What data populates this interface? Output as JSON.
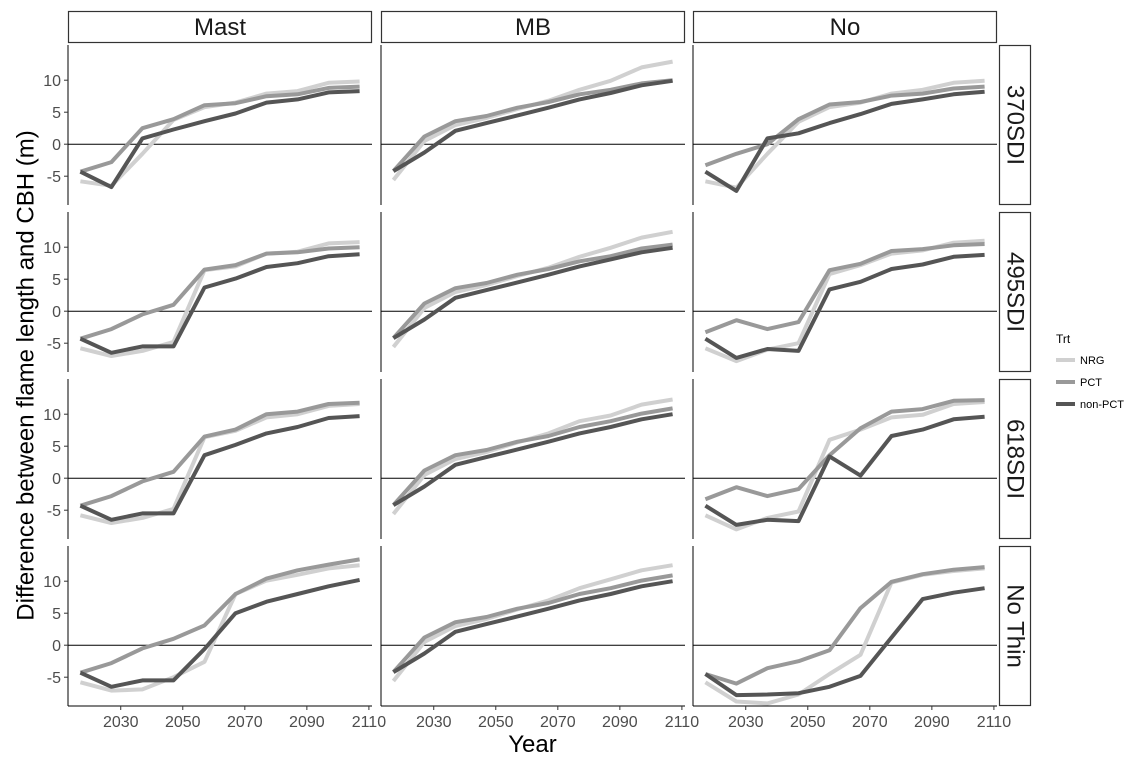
{
  "chart_data": {
    "type": "line",
    "xlabel": "Year",
    "ylabel": "Difference between flame length and CBH (m)",
    "xlim": [
      2013,
      2111
    ],
    "ylim": [
      -9.5,
      15.5
    ],
    "x_ticks": [
      2030,
      2050,
      2070,
      2090,
      2110
    ],
    "y_ticks": [
      -5,
      0,
      5,
      10
    ],
    "hline": 0,
    "x": [
      2017,
      2027,
      2037,
      2047,
      2057,
      2067,
      2077,
      2087,
      2097,
      2107
    ],
    "column_facets": [
      "Mast",
      "MB",
      "No"
    ],
    "row_facets": [
      "370SDI",
      "495SDI",
      "618SDI",
      "No Thin"
    ],
    "legend": {
      "title": "Trt",
      "placement": "right",
      "entries": [
        {
          "name": "NRG",
          "color": "#d0d0d0"
        },
        {
          "name": "PCT",
          "color": "#999999"
        },
        {
          "name": "non-PCT",
          "color": "#555555"
        }
      ]
    },
    "grid": false,
    "panels": [
      {
        "row": "370SDI",
        "col": "Mast",
        "series": [
          {
            "name": "NRG",
            "values": [
              -5.8,
              -6.5,
              -1.5,
              3.8,
              5.8,
              6.5,
              7.9,
              8.3,
              9.6,
              9.8
            ]
          },
          {
            "name": "PCT",
            "values": [
              -4.3,
              -2.8,
              2.5,
              3.9,
              6.1,
              6.4,
              7.5,
              7.8,
              8.8,
              9.0
            ]
          },
          {
            "name": "non-PCT",
            "values": [
              -4.3,
              -6.7,
              0.9,
              2.3,
              3.6,
              4.8,
              6.5,
              7.0,
              8.1,
              8.3
            ]
          }
        ]
      },
      {
        "row": "370SDI",
        "col": "MB",
        "series": [
          {
            "name": "NRG",
            "values": [
              -5.6,
              0.5,
              3.0,
              4.1,
              5.5,
              6.8,
              8.5,
              9.9,
              12.0,
              12.9
            ]
          },
          {
            "name": "PCT",
            "values": [
              -4.2,
              1.2,
              3.6,
              4.4,
              5.7,
              6.6,
              7.8,
              8.5,
              9.5,
              10.0
            ]
          },
          {
            "name": "non-PCT",
            "values": [
              -4.2,
              -1.3,
              2.1,
              3.3,
              4.5,
              5.7,
              7.0,
              8.0,
              9.2,
              9.9
            ]
          }
        ]
      },
      {
        "row": "370SDI",
        "col": "No",
        "series": [
          {
            "name": "NRG",
            "values": [
              -5.8,
              -6.8,
              -1.5,
              3.5,
              5.8,
              6.5,
              7.9,
              8.5,
              9.6,
              9.9
            ]
          },
          {
            "name": "PCT",
            "values": [
              -3.3,
              -1.5,
              0.0,
              3.9,
              6.2,
              6.6,
              7.6,
              7.9,
              8.7,
              9.0
            ]
          },
          {
            "name": "non-PCT",
            "values": [
              -4.3,
              -7.3,
              0.9,
              1.7,
              3.3,
              4.7,
              6.3,
              7.0,
              7.8,
              8.2
            ]
          }
        ]
      },
      {
        "row": "495SDI",
        "col": "Mast",
        "series": [
          {
            "name": "NRG",
            "values": [
              -5.8,
              -7.0,
              -6.2,
              -4.8,
              6.4,
              7.0,
              9.0,
              9.3,
              10.6,
              10.8
            ]
          },
          {
            "name": "PCT",
            "values": [
              -4.3,
              -2.8,
              -0.5,
              1.0,
              6.5,
              7.2,
              9.0,
              9.2,
              9.8,
              10.0
            ]
          },
          {
            "name": "non-PCT",
            "values": [
              -4.3,
              -6.5,
              -5.5,
              -5.5,
              3.7,
              5.1,
              6.9,
              7.5,
              8.6,
              8.9
            ]
          }
        ]
      },
      {
        "row": "495SDI",
        "col": "MB",
        "series": [
          {
            "name": "NRG",
            "values": [
              -5.6,
              0.5,
              3.0,
              4.1,
              5.5,
              6.8,
              8.5,
              9.9,
              11.5,
              12.4
            ]
          },
          {
            "name": "PCT",
            "values": [
              -4.2,
              1.2,
              3.6,
              4.4,
              5.7,
              6.6,
              7.8,
              8.6,
              9.8,
              10.4
            ]
          },
          {
            "name": "non-PCT",
            "values": [
              -4.2,
              -1.3,
              2.1,
              3.3,
              4.5,
              5.7,
              7.0,
              8.1,
              9.2,
              9.9
            ]
          }
        ]
      },
      {
        "row": "495SDI",
        "col": "No",
        "series": [
          {
            "name": "NRG",
            "values": [
              -5.8,
              -7.8,
              -6.0,
              -5.0,
              5.8,
              7.2,
              9.0,
              9.5,
              10.7,
              11.0
            ]
          },
          {
            "name": "PCT",
            "values": [
              -3.3,
              -1.4,
              -2.8,
              -1.7,
              6.4,
              7.4,
              9.4,
              9.7,
              10.3,
              10.5
            ]
          },
          {
            "name": "non-PCT",
            "values": [
              -4.3,
              -7.3,
              -5.9,
              -6.2,
              3.4,
              4.6,
              6.6,
              7.3,
              8.5,
              8.8
            ]
          }
        ]
      },
      {
        "row": "618SDI",
        "col": "Mast",
        "series": [
          {
            "name": "NRG",
            "values": [
              -5.8,
              -7.0,
              -6.2,
              -4.8,
              6.4,
              7.4,
              9.5,
              10.0,
              11.3,
              11.6
            ]
          },
          {
            "name": "PCT",
            "values": [
              -4.3,
              -2.8,
              -0.5,
              1.0,
              6.5,
              7.6,
              10.0,
              10.4,
              11.6,
              11.8
            ]
          },
          {
            "name": "non-PCT",
            "values": [
              -4.3,
              -6.5,
              -5.5,
              -5.5,
              3.6,
              5.2,
              7.0,
              8.0,
              9.4,
              9.7
            ]
          }
        ]
      },
      {
        "row": "618SDI",
        "col": "MB",
        "series": [
          {
            "name": "NRG",
            "values": [
              -5.6,
              0.5,
              3.0,
              4.1,
              5.6,
              7.0,
              8.9,
              9.8,
              11.5,
              12.3
            ]
          },
          {
            "name": "PCT",
            "values": [
              -4.2,
              1.2,
              3.6,
              4.4,
              5.7,
              6.6,
              8.0,
              8.9,
              10.1,
              10.9
            ]
          },
          {
            "name": "non-PCT",
            "values": [
              -4.2,
              -1.3,
              2.1,
              3.3,
              4.5,
              5.7,
              7.0,
              8.0,
              9.2,
              10.0
            ]
          }
        ]
      },
      {
        "row": "618SDI",
        "col": "No",
        "series": [
          {
            "name": "NRG",
            "values": [
              -5.8,
              -8.0,
              -6.2,
              -5.2,
              6.0,
              7.6,
              9.5,
              9.9,
              11.6,
              11.9
            ]
          },
          {
            "name": "PCT",
            "values": [
              -3.3,
              -1.4,
              -2.8,
              -1.7,
              3.6,
              7.8,
              10.4,
              10.8,
              12.1,
              12.2
            ]
          },
          {
            "name": "non-PCT",
            "values": [
              -4.3,
              -7.3,
              -6.5,
              -6.7,
              3.4,
              0.4,
              6.6,
              7.6,
              9.2,
              9.6
            ]
          }
        ]
      },
      {
        "row": "No Thin",
        "col": "Mast",
        "series": [
          {
            "name": "NRG",
            "values": [
              -5.8,
              -7.1,
              -6.9,
              -5.0,
              -2.6,
              8.0,
              10.1,
              11.0,
              12.0,
              12.5
            ]
          },
          {
            "name": "PCT",
            "values": [
              -4.3,
              -2.8,
              -0.5,
              1.0,
              3.1,
              8.0,
              10.4,
              11.7,
              12.6,
              13.4
            ]
          },
          {
            "name": "non-PCT",
            "values": [
              -4.3,
              -6.5,
              -5.5,
              -5.5,
              -0.6,
              5.0,
              6.8,
              8.0,
              9.2,
              10.2
            ]
          }
        ]
      },
      {
        "row": "No Thin",
        "col": "MB",
        "series": [
          {
            "name": "NRG",
            "values": [
              -5.6,
              0.5,
              3.0,
              4.1,
              5.6,
              7.0,
              8.9,
              10.3,
              11.7,
              12.5
            ]
          },
          {
            "name": "PCT",
            "values": [
              -4.2,
              1.2,
              3.6,
              4.4,
              5.7,
              6.6,
              8.0,
              8.9,
              10.1,
              10.9
            ]
          },
          {
            "name": "non-PCT",
            "values": [
              -4.2,
              -1.3,
              2.1,
              3.3,
              4.5,
              5.7,
              7.0,
              8.0,
              9.2,
              10.0
            ]
          }
        ]
      },
      {
        "row": "No Thin",
        "col": "No",
        "series": [
          {
            "name": "NRG",
            "values": [
              -5.8,
              -8.8,
              -9.1,
              -7.7,
              -4.5,
              -1.5,
              9.8,
              11.0,
              11.6,
              12.0
            ]
          },
          {
            "name": "PCT",
            "values": [
              -4.5,
              -6.0,
              -3.6,
              -2.5,
              -0.8,
              5.8,
              9.9,
              11.1,
              11.8,
              12.2
            ]
          },
          {
            "name": "non-PCT",
            "values": [
              -4.5,
              -7.8,
              -7.7,
              -7.5,
              -6.5,
              -4.8,
              1.2,
              7.2,
              8.2,
              8.9
            ]
          }
        ]
      }
    ]
  }
}
